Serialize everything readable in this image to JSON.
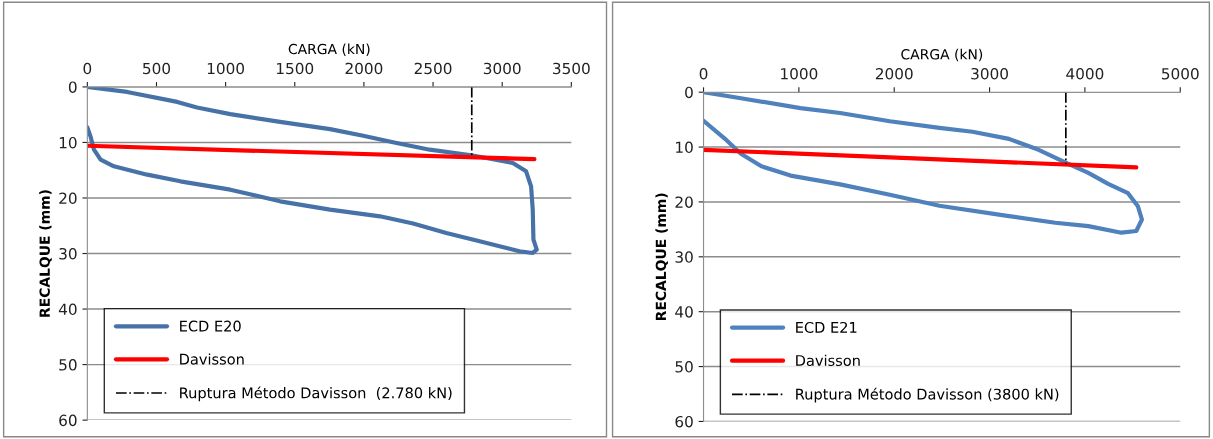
{
  "chart_data": [
    {
      "type": "line",
      "xlabel": "CARGA (kN)",
      "ylabel": "RECALQUE (mm)",
      "xlim": [
        0,
        3500
      ],
      "xticks": [
        0,
        500,
        1000,
        1500,
        2000,
        2500,
        3000,
        3500
      ],
      "ylim": [
        60,
        0
      ],
      "yticks": [
        0,
        10,
        20,
        30,
        40,
        50,
        60
      ],
      "grid": "y",
      "legend": "bottom left",
      "marker": "none",
      "series": [
        {
          "name": "ECD E20",
          "color": "#4672a8",
          "x": [
            0,
            288,
            650,
            793,
            1034,
            1394,
            1755,
            1995,
            2236,
            2476,
            2777,
            3077,
            3173,
            3209,
            3221,
            3226,
            3250,
            3221,
            3125,
            2837,
            2596,
            2356,
            2116,
            1755,
            1394,
            1034,
            673,
            433,
            192,
            96,
            48,
            24,
            0
          ],
          "values": [
            0,
            0.9,
            2.7,
            3.7,
            4.9,
            6.3,
            7.6,
            8.8,
            10.1,
            11.3,
            12.3,
            13.7,
            15.2,
            17.9,
            22.1,
            27.5,
            29.3,
            29.9,
            29.6,
            27.8,
            26.3,
            24.6,
            23.3,
            22.1,
            20.6,
            18.5,
            17.0,
            15.8,
            14.3,
            13.1,
            11.3,
            9.0,
            7.3
          ]
        },
        {
          "name": "Davisson",
          "color": "#ff0000",
          "x": [
            0,
            3233
          ],
          "values": [
            10.6,
            13.0
          ]
        },
        {
          "name": "Ruptura Método Davisson  (2.780 kN)",
          "color": "#000000",
          "line_style": "dashdot",
          "x": [
            2780,
            2780
          ],
          "values": [
            0,
            12.4
          ]
        }
      ]
    },
    {
      "type": "line",
      "xlabel": "CARGA (kN)",
      "ylabel": "RECALQUE (mm)",
      "xlim": [
        0,
        5000
      ],
      "xticks": [
        0,
        1000,
        2000,
        3000,
        4000,
        5000
      ],
      "ylim": [
        60,
        0
      ],
      "yticks": [
        0,
        10,
        20,
        30,
        40,
        50,
        60
      ],
      "grid": "y",
      "legend": "bottom left",
      "marker": "none",
      "series": [
        {
          "name": "ECD E21",
          "color": "#4f81bd",
          "x": [
            0,
            392,
            1017,
            1433,
            1954,
            2474,
            2821,
            3203,
            3515,
            3793,
            4036,
            4244,
            4452,
            4556,
            4598,
            4539,
            4383,
            4036,
            3689,
            3168,
            2474,
            1954,
            1433,
            913,
            607,
            392,
            219,
            0
          ],
          "values": [
            0,
            1.1,
            2.9,
            3.8,
            5.3,
            6.5,
            7.2,
            8.5,
            10.5,
            12.8,
            14.7,
            16.7,
            18.4,
            20.8,
            23.2,
            25.3,
            25.6,
            24.4,
            23.8,
            22.5,
            20.7,
            18.7,
            16.8,
            15.2,
            13.5,
            11.2,
            8.4,
            5.2
          ]
        },
        {
          "name": "Davisson",
          "color": "#ff0000",
          "x": [
            0,
            4539
          ],
          "values": [
            10.5,
            13.7
          ]
        },
        {
          "name": "Ruptura Método Davisson (3800 kN)",
          "color": "#000000",
          "line_style": "dashdot",
          "x": [
            3800,
            3800
          ],
          "values": [
            0,
            13.1
          ]
        }
      ]
    }
  ]
}
